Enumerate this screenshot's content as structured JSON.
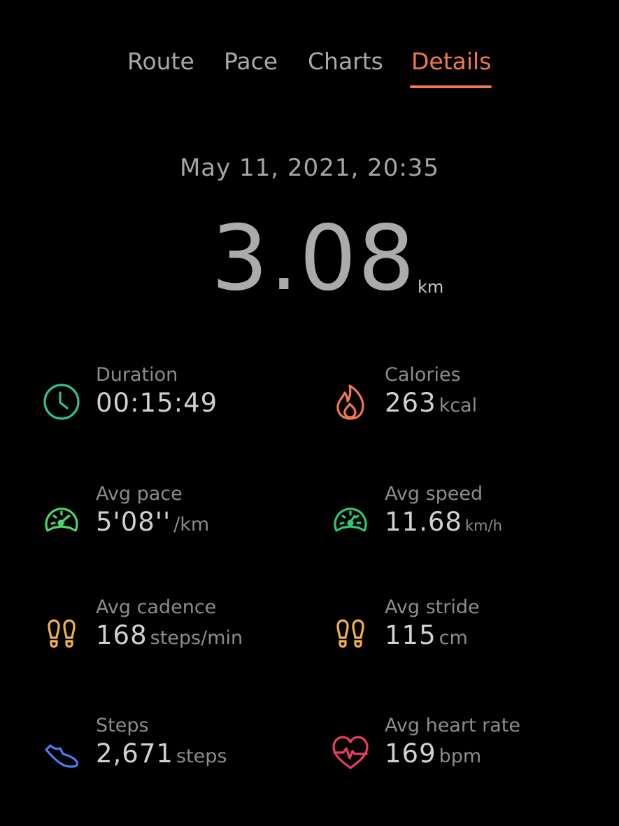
{
  "tabs": [
    {
      "label": "Route"
    },
    {
      "label": "Pace"
    },
    {
      "label": "Charts"
    },
    {
      "label": "Details"
    }
  ],
  "active_tab": "Details",
  "workout": {
    "date": "May 11, 2021, 20:35",
    "distance": {
      "value": "3.08",
      "unit": "km"
    }
  },
  "stats": {
    "duration": {
      "label": "Duration",
      "value": "00:15:49",
      "unit": "",
      "icon": "clock-icon",
      "color": "#2dc58a"
    },
    "calories": {
      "label": "Calories",
      "value": "263",
      "unit": "kcal",
      "icon": "flame-icon",
      "color": "#ee7a4e"
    },
    "avg_pace": {
      "label": "Avg pace",
      "value": "5'08''",
      "unit": "/km",
      "icon": "speedometer-icon",
      "color": "#4fd46a"
    },
    "avg_speed": {
      "label": "Avg speed",
      "value": "11.68",
      "unit": "km/h",
      "icon": "speedometer-icon",
      "color": "#2fc776"
    },
    "avg_cadence": {
      "label": "Avg cadence",
      "value": "168",
      "unit": "steps/min",
      "icon": "footprints-icon",
      "color": "#f2b34a"
    },
    "avg_stride": {
      "label": "Avg stride",
      "value": "115",
      "unit": "cm",
      "icon": "footprints-icon",
      "color": "#f2b34a"
    },
    "steps": {
      "label": "Steps",
      "value": "2,671",
      "unit": "steps",
      "icon": "shoe-icon",
      "color": "#4b7df0"
    },
    "avg_heart_rate": {
      "label": "Avg heart rate",
      "value": "169",
      "unit": "bpm",
      "icon": "heart-rate-icon",
      "color": "#ea3e5f"
    }
  }
}
